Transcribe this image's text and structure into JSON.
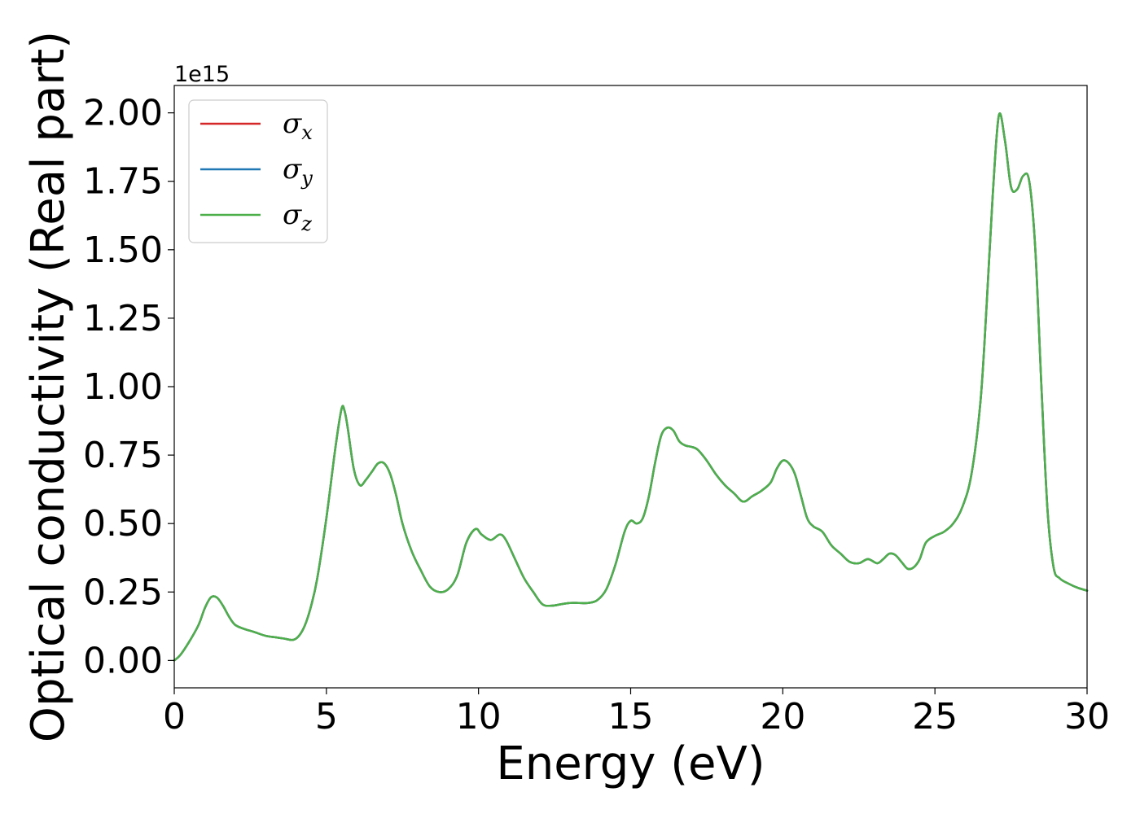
{
  "chart_data": {
    "type": "line",
    "xlabel": "Energy (eV)",
    "ylabel": "Optical conductivity (Real part)",
    "y_offset_label": "1e15",
    "xlim": [
      0,
      30
    ],
    "ylim": [
      -0.1,
      2.1
    ],
    "x_ticks": [
      0,
      5,
      10,
      15,
      20,
      25,
      30
    ],
    "x_tick_labels": [
      "0",
      "5",
      "10",
      "15",
      "20",
      "25",
      "30"
    ],
    "y_ticks": [
      0.0,
      0.25,
      0.5,
      0.75,
      1.0,
      1.25,
      1.5,
      1.75,
      2.0
    ],
    "y_tick_labels": [
      "0.00",
      "0.25",
      "0.50",
      "0.75",
      "1.00",
      "1.25",
      "1.50",
      "1.75",
      "2.00"
    ],
    "grid": false,
    "legend": {
      "position": "top-left",
      "entries": [
        {
          "symbol": "σ",
          "subscript": "x",
          "color": "#d62728"
        },
        {
          "symbol": "σ",
          "subscript": "y",
          "color": "#1f77b4"
        },
        {
          "symbol": "σ",
          "subscript": "z",
          "color": "#4daf4a"
        }
      ]
    },
    "x": [
      0,
      0.2,
      0.5,
      0.8,
      1.0,
      1.2,
      1.4,
      1.6,
      1.8,
      2.0,
      2.3,
      2.6,
      3.0,
      3.3,
      3.6,
      3.9,
      4.1,
      4.3,
      4.5,
      4.7,
      5.0,
      5.3,
      5.5,
      5.6,
      5.7,
      5.9,
      6.1,
      6.3,
      6.5,
      6.7,
      6.9,
      7.1,
      7.3,
      7.5,
      7.8,
      8.1,
      8.4,
      8.7,
      9.0,
      9.3,
      9.6,
      9.9,
      10.1,
      10.4,
      10.7,
      10.9,
      11.2,
      11.5,
      11.8,
      12.1,
      12.4,
      12.7,
      13.0,
      13.3,
      13.6,
      13.9,
      14.2,
      14.5,
      14.8,
      15.0,
      15.2,
      15.4,
      15.6,
      15.8,
      16.0,
      16.2,
      16.4,
      16.6,
      16.8,
      17.0,
      17.2,
      17.5,
      17.8,
      18.1,
      18.4,
      18.7,
      19.0,
      19.3,
      19.6,
      19.8,
      20.0,
      20.2,
      20.4,
      20.6,
      20.8,
      21.0,
      21.3,
      21.6,
      21.9,
      22.2,
      22.5,
      22.8,
      23.1,
      23.3,
      23.5,
      23.7,
      23.9,
      24.1,
      24.3,
      24.5,
      24.7,
      25.0,
      25.3,
      25.6,
      25.9,
      26.2,
      26.5,
      26.7,
      26.9,
      27.1,
      27.3,
      27.5,
      27.7,
      27.9,
      28.1,
      28.3,
      28.5,
      28.7,
      28.9,
      29.1,
      29.4,
      29.7,
      30.0
    ],
    "series": [
      {
        "name": "σx",
        "color": "#d62728",
        "values": [
          0.0,
          0.02,
          0.07,
          0.13,
          0.19,
          0.23,
          0.23,
          0.2,
          0.16,
          0.13,
          0.115,
          0.105,
          0.09,
          0.085,
          0.08,
          0.075,
          0.09,
          0.13,
          0.2,
          0.3,
          0.52,
          0.78,
          0.92,
          0.91,
          0.85,
          0.7,
          0.64,
          0.66,
          0.69,
          0.72,
          0.72,
          0.68,
          0.6,
          0.5,
          0.4,
          0.33,
          0.27,
          0.25,
          0.26,
          0.31,
          0.43,
          0.48,
          0.46,
          0.44,
          0.46,
          0.44,
          0.37,
          0.3,
          0.25,
          0.205,
          0.2,
          0.205,
          0.21,
          0.21,
          0.21,
          0.22,
          0.26,
          0.35,
          0.47,
          0.51,
          0.5,
          0.52,
          0.6,
          0.72,
          0.82,
          0.85,
          0.84,
          0.8,
          0.785,
          0.78,
          0.77,
          0.73,
          0.68,
          0.64,
          0.61,
          0.58,
          0.6,
          0.62,
          0.65,
          0.7,
          0.73,
          0.72,
          0.68,
          0.6,
          0.52,
          0.49,
          0.47,
          0.42,
          0.39,
          0.36,
          0.355,
          0.37,
          0.355,
          0.37,
          0.39,
          0.385,
          0.36,
          0.335,
          0.34,
          0.37,
          0.43,
          0.455,
          0.47,
          0.5,
          0.56,
          0.68,
          0.95,
          1.3,
          1.7,
          1.99,
          1.9,
          1.73,
          1.72,
          1.77,
          1.75,
          1.5,
          1.0,
          0.55,
          0.34,
          0.3,
          0.28,
          0.265,
          0.255
        ]
      },
      {
        "name": "σy",
        "color": "#1f77b4",
        "values": [
          0.0,
          0.02,
          0.07,
          0.13,
          0.19,
          0.23,
          0.23,
          0.2,
          0.16,
          0.13,
          0.115,
          0.105,
          0.09,
          0.085,
          0.08,
          0.075,
          0.09,
          0.13,
          0.2,
          0.3,
          0.52,
          0.78,
          0.92,
          0.91,
          0.85,
          0.7,
          0.64,
          0.66,
          0.69,
          0.72,
          0.72,
          0.68,
          0.6,
          0.5,
          0.4,
          0.33,
          0.27,
          0.25,
          0.26,
          0.31,
          0.43,
          0.48,
          0.46,
          0.44,
          0.46,
          0.44,
          0.37,
          0.3,
          0.25,
          0.205,
          0.2,
          0.205,
          0.21,
          0.21,
          0.21,
          0.22,
          0.26,
          0.35,
          0.47,
          0.51,
          0.5,
          0.52,
          0.6,
          0.72,
          0.82,
          0.85,
          0.84,
          0.8,
          0.785,
          0.78,
          0.77,
          0.73,
          0.68,
          0.64,
          0.61,
          0.58,
          0.6,
          0.62,
          0.65,
          0.7,
          0.73,
          0.72,
          0.68,
          0.6,
          0.52,
          0.49,
          0.47,
          0.42,
          0.39,
          0.36,
          0.355,
          0.37,
          0.355,
          0.37,
          0.39,
          0.385,
          0.36,
          0.335,
          0.34,
          0.37,
          0.43,
          0.455,
          0.47,
          0.5,
          0.56,
          0.68,
          0.95,
          1.3,
          1.7,
          1.99,
          1.9,
          1.73,
          1.72,
          1.77,
          1.75,
          1.5,
          1.0,
          0.55,
          0.34,
          0.3,
          0.28,
          0.265,
          0.255
        ]
      },
      {
        "name": "σz",
        "color": "#4daf4a",
        "values": [
          0.0,
          0.02,
          0.07,
          0.13,
          0.19,
          0.23,
          0.23,
          0.2,
          0.16,
          0.13,
          0.115,
          0.105,
          0.09,
          0.085,
          0.08,
          0.075,
          0.09,
          0.13,
          0.2,
          0.3,
          0.52,
          0.78,
          0.92,
          0.91,
          0.85,
          0.7,
          0.64,
          0.66,
          0.69,
          0.72,
          0.72,
          0.68,
          0.6,
          0.5,
          0.4,
          0.33,
          0.27,
          0.25,
          0.26,
          0.31,
          0.43,
          0.48,
          0.46,
          0.44,
          0.46,
          0.44,
          0.37,
          0.3,
          0.25,
          0.205,
          0.2,
          0.205,
          0.21,
          0.21,
          0.21,
          0.22,
          0.26,
          0.35,
          0.47,
          0.51,
          0.5,
          0.52,
          0.6,
          0.72,
          0.82,
          0.85,
          0.84,
          0.8,
          0.785,
          0.78,
          0.77,
          0.73,
          0.68,
          0.64,
          0.61,
          0.58,
          0.6,
          0.62,
          0.65,
          0.7,
          0.73,
          0.72,
          0.68,
          0.6,
          0.52,
          0.49,
          0.47,
          0.42,
          0.39,
          0.36,
          0.355,
          0.37,
          0.355,
          0.37,
          0.39,
          0.385,
          0.36,
          0.335,
          0.34,
          0.37,
          0.43,
          0.455,
          0.47,
          0.5,
          0.56,
          0.68,
          0.95,
          1.3,
          1.7,
          1.99,
          1.9,
          1.73,
          1.72,
          1.77,
          1.75,
          1.5,
          1.0,
          0.55,
          0.34,
          0.3,
          0.28,
          0.265,
          0.255
        ]
      }
    ]
  }
}
